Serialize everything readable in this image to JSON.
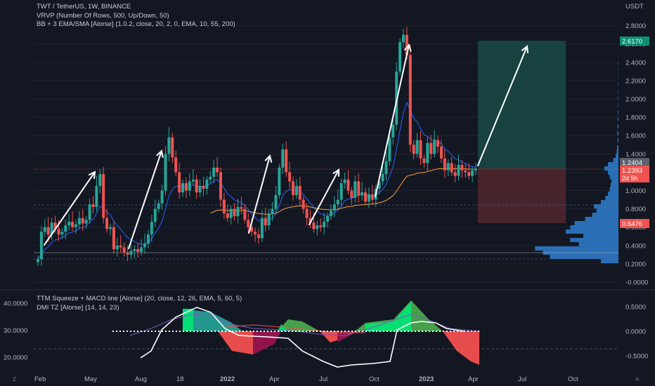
{
  "legend": {
    "line1": "TWT / TetherUS, 1W, BINANCE",
    "line2": "VRVP (Number Of Rows, 500, Up/Down, 50)",
    "line3": "BB + 3 EMA/SMA [Alorse] (1.0.2, close, 20, 2, 0, EMA, 10, 55, 200)"
  },
  "indicator_legend": {
    "line1": "TTM Squeeze + MACD line [Alorse] (20, close, 12, 26, EMA, 5, 60, 5)",
    "line2": "DMI TZ [Alorse] (14, 14, 23)"
  },
  "currency": "USDT",
  "corner_left": "Z",
  "corner_right": "A",
  "price_axis": {
    "labels": [
      "2.8000",
      "2.6000",
      "2.4000",
      "2.2000",
      "2.0000",
      "1.8000",
      "1.6000",
      "1.4000",
      "1.2000",
      "1.0000",
      "0.8000",
      "0.6000",
      "0.4000",
      "0.2000",
      "-0.0000"
    ],
    "values": [
      2.8,
      2.6,
      2.4,
      2.2,
      2.0,
      1.8,
      1.6,
      1.4,
      1.2,
      1.0,
      0.8,
      0.6,
      0.4,
      0.2,
      0.0
    ]
  },
  "macd_axis": {
    "labels": [
      "0.5000",
      "0.0000",
      "-0.5000"
    ],
    "values": [
      0.5,
      0.0,
      -0.5
    ]
  },
  "dmi_axis": {
    "labels": [
      "40.0000",
      "30.0000",
      "20.0000"
    ],
    "values": [
      40,
      30,
      20
    ]
  },
  "time_axis": [
    "Feb",
    "May",
    "Aug",
    "18",
    "2022",
    "Apr",
    "Jul",
    "Oct",
    "2023",
    "Apr",
    "Jul",
    "Oct"
  ],
  "tags": {
    "target": "2.6170",
    "last_gray": "1.2404",
    "last_red": "1.2393",
    "countdown": "2d 5h",
    "stop": "0.6476"
  },
  "colors": {
    "background": "#131722",
    "up": "#26a69a",
    "down": "#ef5350",
    "target_zone": "#19524a",
    "stop_zone": "#5a2a30",
    "profile": "#2f7fd0",
    "ema_fast": "#2962ff",
    "ema_slow": "#f7a13a"
  }
}
